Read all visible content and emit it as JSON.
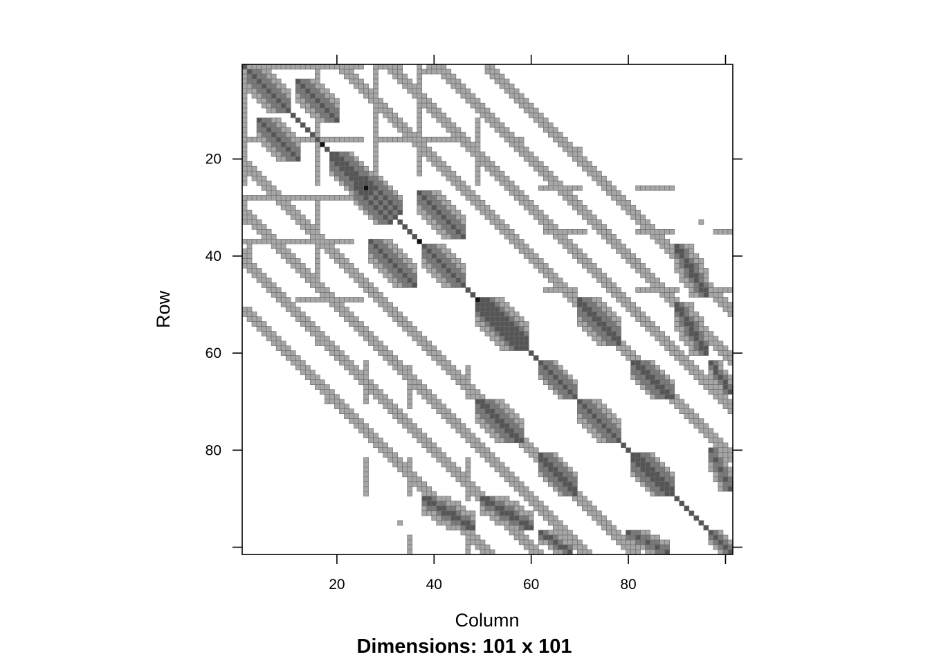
{
  "chart_data": {
    "type": "heatmap",
    "subtype": "sparse-matrix-image",
    "xlabel": "Column",
    "ylabel": "Row",
    "sub": "Dimensions: 101 x 101",
    "dims": [
      101,
      101
    ],
    "xlim": [
      0.5,
      101.5
    ],
    "ylim": [
      101.5,
      0.5
    ],
    "x_ticks": [
      20,
      40,
      60,
      80
    ],
    "y_ticks": [
      20,
      40,
      60,
      80
    ],
    "x_tick_marks": [
      20,
      40,
      60,
      80,
      100
    ],
    "y_tick_marks": [
      20,
      40,
      60,
      80,
      100
    ],
    "colors": {
      "light": "#a6a6a6",
      "mid": "#7a7a7a",
      "dark": "#555555",
      "darkest": "#111111",
      "cell_border": "#6b6b6b",
      "frame": "#000000"
    },
    "nonzero_pattern": {
      "diagonal": {
        "from": 1,
        "to": 101
      },
      "diagonal_darkest": [
        17,
        26,
        37,
        49
      ],
      "bands": [
        {
          "cols": [
            1,
            101
          ],
          "offset_from_diagonal": 20
        },
        {
          "cols": [
            1,
            101
          ],
          "offset_from_diagonal": 30
        },
        {
          "cols": [
            1,
            101
          ],
          "offset_from_diagonal": 40
        },
        {
          "cols": [
            1,
            101
          ],
          "offset_from_diagonal": 50
        }
      ],
      "row_segments": [
        {
          "row": 1,
          "cols": [
            1,
            2
          ]
        },
        {
          "row": 1,
          "cols": [
            6,
            11
          ]
        },
        {
          "row": 1,
          "cols": [
            15,
            16
          ]
        },
        {
          "row": 1,
          "cols": [
            19,
            25
          ]
        },
        {
          "row": 1,
          "cols": [
            28,
            31
          ]
        },
        {
          "row": 1,
          "cols": [
            39,
            40
          ]
        },
        {
          "row": 16,
          "cols": [
            1,
            25
          ]
        },
        {
          "row": 16,
          "cols": [
            28,
            33
          ]
        },
        {
          "row": 16,
          "cols": [
            40,
            44
          ]
        },
        {
          "row": 16,
          "cols": [
            57,
            58
          ]
        },
        {
          "row": 26,
          "cols": [
            62,
            69
          ]
        },
        {
          "row": 26,
          "cols": [
            82,
            88
          ]
        },
        {
          "row": 27,
          "cols": [
            25,
            27
          ]
        },
        {
          "row": 28,
          "cols": [
            1,
            25
          ]
        },
        {
          "row": 35,
          "cols": [
            63,
            69
          ]
        },
        {
          "row": 35,
          "cols": [
            82,
            88
          ]
        },
        {
          "row": 35,
          "cols": [
            98,
            101
          ]
        },
        {
          "row": 37,
          "cols": [
            1,
            23
          ]
        },
        {
          "row": 47,
          "cols": [
            63,
            69
          ]
        },
        {
          "row": 47,
          "cols": [
            82,
            90
          ]
        },
        {
          "row": 47,
          "cols": [
            98,
            101
          ]
        },
        {
          "row": 49,
          "cols": [
            12,
            25
          ]
        }
      ],
      "column_segments": [
        {
          "col": 1,
          "rows": [
            1,
            25
          ]
        },
        {
          "col": 1,
          "rows": [
            28,
            33
          ]
        },
        {
          "col": 2,
          "rows": [
            38,
            41
          ]
        },
        {
          "col": 16,
          "rows": [
            28,
            35
          ]
        },
        {
          "col": 16,
          "rows": [
            37,
            45
          ]
        },
        {
          "col": 16,
          "rows": [
            56,
            58
          ]
        },
        {
          "col": 26,
          "rows": [
            64,
            70
          ]
        },
        {
          "col": 26,
          "rows": [
            84,
            89
          ]
        },
        {
          "col": 35,
          "rows": [
            63,
            71
          ]
        },
        {
          "col": 35,
          "rows": [
            83,
            89
          ]
        },
        {
          "col": 35,
          "rows": [
            98,
            101
          ]
        },
        {
          "col": 47,
          "rows": [
            63,
            69
          ]
        },
        {
          "col": 47,
          "rows": [
            82,
            88
          ]
        },
        {
          "col": 47,
          "rows": [
            98,
            101
          ]
        },
        {
          "col": 70,
          "rows": [
            18,
            20
          ]
        },
        {
          "col": 95,
          "rows": [
            33,
            33
          ]
        }
      ],
      "blocks": [
        {
          "rows": [
            2,
            10
          ],
          "cols": [
            2,
            10
          ]
        },
        {
          "rows": [
            4,
            12
          ],
          "cols": [
            12,
            20
          ]
        },
        {
          "rows": [
            19,
            26
          ],
          "cols": [
            20,
            27
          ]
        },
        {
          "rows": [
            26,
            33
          ],
          "cols": [
            24,
            31
          ]
        },
        {
          "rows": [
            28,
            36
          ],
          "cols": [
            38,
            46
          ]
        },
        {
          "rows": [
            37,
            45
          ],
          "cols": [
            27,
            35
          ]
        },
        {
          "rows": [
            38,
            46
          ],
          "cols": [
            38,
            46
          ]
        },
        {
          "rows": [
            49,
            58
          ],
          "cols": [
            50,
            59
          ]
        },
        {
          "rows": [
            49,
            57
          ],
          "cols": [
            70,
            78
          ]
        },
        {
          "rows": [
            62,
            69
          ],
          "cols": [
            62,
            69
          ]
        },
        {
          "rows": [
            62,
            69
          ],
          "cols": [
            82,
            89
          ]
        },
        {
          "rows": [
            70,
            78
          ],
          "cols": [
            50,
            58
          ]
        },
        {
          "rows": [
            70,
            78
          ],
          "cols": [
            70,
            78
          ]
        },
        {
          "rows": [
            81,
            88
          ],
          "cols": [
            62,
            69
          ]
        },
        {
          "rows": [
            81,
            88
          ],
          "cols": [
            82,
            89
          ]
        },
        {
          "rows": [
            90,
            96
          ],
          "cols": [
            38,
            48
          ]
        },
        {
          "rows": [
            90,
            96
          ],
          "cols": [
            50,
            60
          ]
        },
        {
          "rows": [
            97,
            101
          ],
          "cols": [
            62,
            68
          ]
        },
        {
          "rows": [
            97,
            101
          ],
          "cols": [
            80,
            88
          ]
        },
        {
          "rows": [
            97,
            101
          ],
          "cols": [
            97,
            101
          ]
        }
      ]
    }
  }
}
